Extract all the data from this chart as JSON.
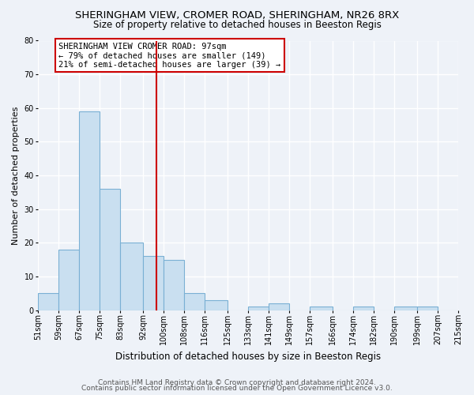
{
  "title1": "SHERINGHAM VIEW, CROMER ROAD, SHERINGHAM, NR26 8RX",
  "title2": "Size of property relative to detached houses in Beeston Regis",
  "xlabel": "Distribution of detached houses by size in Beeston Regis",
  "ylabel": "Number of detached properties",
  "bin_edges": [
    51,
    59,
    67,
    75,
    83,
    92,
    100,
    108,
    116,
    125,
    133,
    141,
    149,
    157,
    166,
    174,
    182,
    190,
    199,
    207,
    215
  ],
  "counts": [
    5,
    18,
    59,
    36,
    20,
    16,
    15,
    5,
    3,
    0,
    1,
    2,
    0,
    1,
    0,
    1,
    0,
    1,
    1,
    0
  ],
  "bar_color": "#c9dff0",
  "bar_edge_color": "#7ab0d4",
  "property_size": 97,
  "vline_color": "#cc0000",
  "annotation_text": "SHERINGHAM VIEW CROMER ROAD: 97sqm\n← 79% of detached houses are smaller (149)\n21% of semi-detached houses are larger (39) →",
  "annotation_box_color": "#ffffff",
  "annotation_box_edge_color": "#cc0000",
  "ylim": [
    0,
    80
  ],
  "yticks": [
    0,
    10,
    20,
    30,
    40,
    50,
    60,
    70,
    80
  ],
  "tick_labels": [
    "51sqm",
    "59sqm",
    "67sqm",
    "75sqm",
    "83sqm",
    "92sqm",
    "100sqm",
    "108sqm",
    "116sqm",
    "125sqm",
    "133sqm",
    "141sqm",
    "149sqm",
    "157sqm",
    "166sqm",
    "174sqm",
    "182sqm",
    "190sqm",
    "199sqm",
    "207sqm",
    "215sqm"
  ],
  "footer1": "Contains HM Land Registry data © Crown copyright and database right 2024.",
  "footer2": "Contains public sector information licensed under the Open Government Licence v3.0.",
  "background_color": "#eef2f8",
  "grid_color": "#ffffff",
  "title1_fontsize": 9.5,
  "title2_fontsize": 8.5,
  "xlabel_fontsize": 8.5,
  "ylabel_fontsize": 8,
  "tick_fontsize": 7,
  "footer_fontsize": 6.5,
  "annot_fontsize": 7.5
}
